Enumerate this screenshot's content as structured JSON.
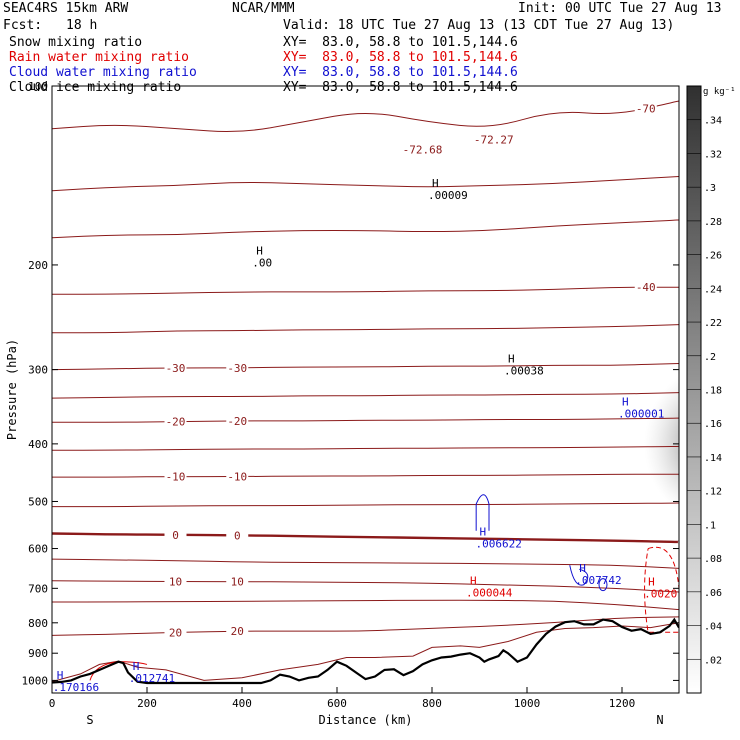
{
  "header": {
    "model": "SEAC4RS 15km ARW",
    "org": "NCAR/MMM",
    "init": "Init: 00 UTC Tue 27 Aug 13",
    "fcst_label": "Fcst:",
    "fcst_value": "18 h",
    "valid": "Valid: 18 UTC Tue 27 Aug 13 (13 CDT Tue 27 Aug 13)",
    "fields": [
      {
        "name": "Snow mixing ratio",
        "xy": "XY=  83.0, 58.8 to 101.5,144.6",
        "color": "#000000"
      },
      {
        "name": "Rain water mixing ratio",
        "xy": "XY=  83.0, 58.8 to 101.5,144.6",
        "color": "#e00000"
      },
      {
        "name": "Cloud water mixing ratio",
        "xy": "XY=  83.0, 58.8 to 101.5,144.6",
        "color": "#1010d0"
      },
      {
        "name": "Cloud ice mixing ratio",
        "xy": "XY=  83.0, 58.8 to 101.5,144.6",
        "color": "#000000"
      }
    ]
  },
  "chart_data": {
    "type": "contour-cross-section",
    "xlabel": "Distance (km)",
    "ylabel": "Pressure (hPa)",
    "xlim": [
      0,
      1320
    ],
    "ylim": [
      1050,
      100
    ],
    "x_ticks": [
      0,
      200,
      400,
      600,
      800,
      1000,
      1200
    ],
    "y_ticks": [
      100,
      200,
      300,
      400,
      500,
      600,
      700,
      800,
      900,
      1000
    ],
    "y_tick_labels": [
      "100",
      "200",
      "300",
      "400",
      "500",
      "600",
      "700",
      "800",
      "900",
      "1000"
    ],
    "end_labels": {
      "left": "S",
      "right": "N"
    },
    "temperature_contour_color": "#8b1a1a",
    "terrain": {
      "x": [
        0,
        20,
        40,
        60,
        80,
        100,
        120,
        140,
        150,
        160,
        180,
        200,
        250,
        300,
        350,
        400,
        440,
        460,
        480,
        500,
        520,
        540,
        560,
        580,
        600,
        620,
        640,
        660,
        680,
        700,
        720,
        740,
        760,
        780,
        800,
        820,
        840,
        860,
        880,
        900,
        910,
        920,
        940,
        950,
        960,
        980,
        1000,
        1020,
        1040,
        1060,
        1080,
        1100,
        1120,
        1140,
        1160,
        1180,
        1200,
        1220,
        1240,
        1260,
        1280,
        1300,
        1310,
        1320
      ],
      "p": [
        1008,
        1006,
        1000,
        985,
        975,
        960,
        945,
        930,
        935,
        970,
        1005,
        1010,
        1010,
        1010,
        1010,
        1010,
        1010,
        1000,
        978,
        985,
        1000,
        990,
        985,
        960,
        930,
        945,
        970,
        995,
        985,
        960,
        958,
        980,
        965,
        940,
        925,
        915,
        912,
        905,
        900,
        915,
        930,
        922,
        910,
        890,
        900,
        930,
        915,
        870,
        835,
        812,
        798,
        795,
        805,
        805,
        790,
        795,
        813,
        825,
        820,
        835,
        830,
        810,
        790,
        815
      ]
    },
    "temperature_contours": [
      {
        "t": -70,
        "label": "-70",
        "p": [
          118,
          116,
          118,
          120,
          115,
          110,
          115,
          118,
          110,
          112,
          106
        ]
      },
      {
        "t": -60,
        "p": [
          150,
          148,
          147,
          145,
          146,
          147,
          148,
          147,
          146,
          144,
          142
        ]
      },
      {
        "t": -50,
        "p": [
          180,
          178,
          178,
          176,
          175,
          175,
          176,
          175,
          172,
          170,
          168
        ]
      },
      {
        "t": -40,
        "label": "-40",
        "p": [
          224,
          224,
          223,
          222,
          222,
          222,
          221,
          221,
          220,
          218,
          218
        ]
      },
      {
        "t": -35,
        "p": [
          260,
          260,
          258,
          258,
          257,
          257,
          256,
          256,
          255,
          254,
          252
        ]
      },
      {
        "t": -30,
        "label": "-30",
        "p": [
          300,
          299,
          298,
          298,
          297,
          297,
          296,
          296,
          295,
          295,
          293
        ]
      },
      {
        "t": -25,
        "p": [
          335,
          334,
          333,
          333,
          332,
          332,
          331,
          331,
          330,
          330,
          328
        ]
      },
      {
        "t": -20,
        "label": "-20",
        "p": [
          368,
          368,
          367,
          366,
          366,
          365,
          365,
          364,
          364,
          363,
          362
        ]
      },
      {
        "t": -15,
        "p": [
          410,
          410,
          409,
          408,
          408,
          407,
          407,
          406,
          406,
          405,
          404
        ]
      },
      {
        "t": -10,
        "label": "-10",
        "p": [
          455,
          455,
          454,
          454,
          453,
          453,
          452,
          452,
          451,
          450,
          450
        ]
      },
      {
        "t": -5,
        "p": [
          510,
          510,
          509,
          508,
          508,
          507,
          506,
          506,
          505,
          504,
          503
        ]
      },
      {
        "t": 0,
        "label": "0",
        "p": [
          566,
          568,
          569,
          570,
          572,
          574,
          576,
          578,
          580,
          582,
          585
        ]
      },
      {
        "t": 5,
        "p": [
          625,
          627,
          629,
          632,
          633,
          634,
          635,
          636,
          638,
          640,
          648
        ]
      },
      {
        "t": 10,
        "label": "10",
        "p": [
          680,
          681,
          682,
          682,
          683,
          684,
          686,
          690,
          694,
          700,
          710
        ]
      },
      {
        "t": 15,
        "p": [
          738,
          738,
          737,
          736,
          735,
          734,
          733,
          733,
          735,
          745,
          760
        ]
      },
      {
        "t": 20,
        "label": "20",
        "p": [
          840,
          836,
          830,
          826,
          826,
          826,
          818,
          810,
          800,
          785,
          782
        ]
      }
    ],
    "pressure_labels": [
      {
        "text": "-72.68",
        "x": 780,
        "p": 130
      },
      {
        "text": "-72.27",
        "x": 930,
        "p": 125
      }
    ],
    "extrema": [
      {
        "marker": "H",
        "value": ".00009",
        "x": 800,
        "p": 148,
        "color": "#000000"
      },
      {
        "marker": "H",
        "value": ".00",
        "x": 430,
        "p": 192,
        "color": "#000000"
      },
      {
        "marker": "H",
        "value": ".00038",
        "x": 960,
        "p": 292,
        "color": "#000000"
      },
      {
        "marker": "H",
        "value": ".000001",
        "x": 1200,
        "p": 345,
        "color": "#1010d0"
      },
      {
        "marker": "H",
        "value": ".006622",
        "x": 900,
        "p": 570,
        "color": "#1010d0"
      },
      {
        "marker": "H",
        "value": ".007742",
        "x": 1110,
        "p": 657,
        "color": "#1010d0"
      },
      {
        "marker": "H",
        "value": ".000044",
        "x": 880,
        "p": 690,
        "color": "#e00000"
      },
      {
        "marker": "H",
        "value": ".0020",
        "x": 1255,
        "p": 693,
        "color": "#e00000"
      },
      {
        "marker": "H",
        "value": ".012741",
        "x": 170,
        "p": 960,
        "color": "#1010d0"
      },
      {
        "marker": "H",
        "value": ".170166",
        "x": 10,
        "p": 995,
        "color": "#1010d0"
      }
    ],
    "colorbar": {
      "unit": "g kg⁻¹",
      "ticks": [
        ".02",
        ".04",
        ".06",
        ".08",
        ".1",
        ".12",
        ".14",
        ".16",
        ".18",
        ".2",
        ".22",
        ".24",
        ".26",
        ".28",
        ".3",
        ".32",
        ".34"
      ],
      "range": [
        0,
        0.36
      ]
    }
  }
}
